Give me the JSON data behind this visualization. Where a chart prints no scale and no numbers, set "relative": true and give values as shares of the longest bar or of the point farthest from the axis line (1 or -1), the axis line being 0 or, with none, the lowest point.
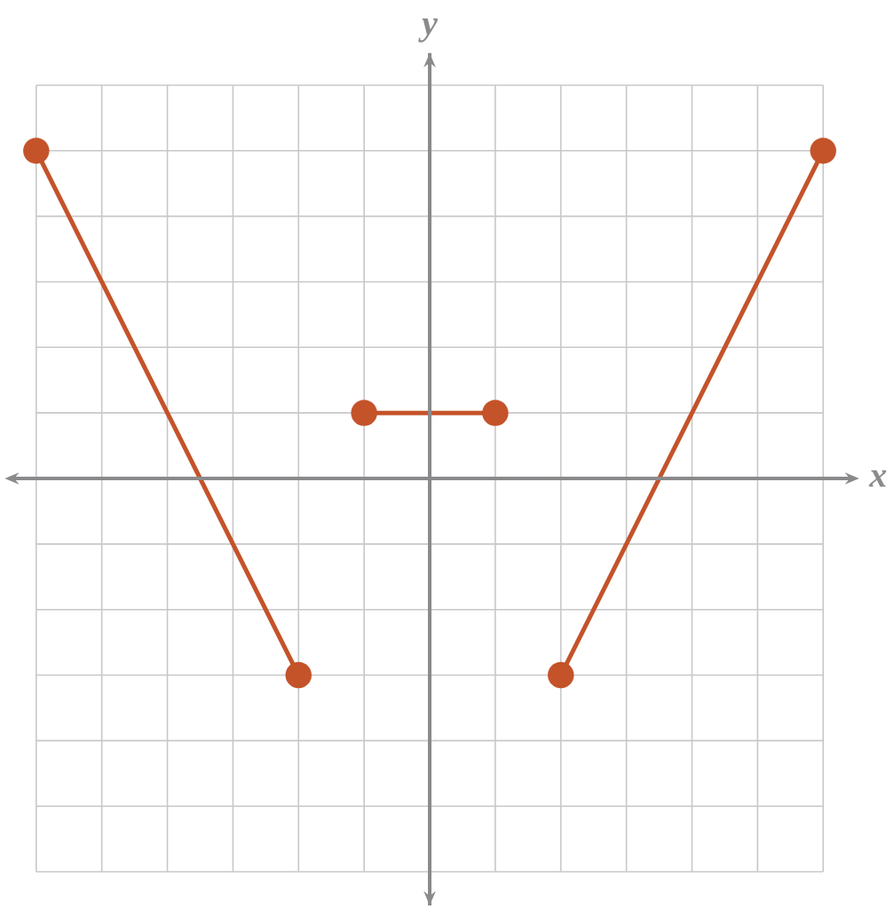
{
  "chart_data": {
    "type": "line",
    "xlabel": "x",
    "ylabel": "y",
    "relative": true,
    "grid": true,
    "marker": "circle",
    "categories": [
      null,
      null,
      null,
      null,
      null,
      null,
      null,
      null,
      null,
      null,
      null,
      null,
      null
    ],
    "series": [
      {
        "color": "#c4532a",
        "values": [
          1,
          null,
          null,
          null,
          -0.6,
          null,
          null,
          null,
          null,
          null,
          null,
          null,
          null
        ]
      },
      {
        "color": "#c4532a",
        "values": [
          null,
          null,
          null,
          null,
          null,
          0.2,
          null,
          0.2,
          null,
          null,
          null,
          null,
          null
        ]
      },
      {
        "color": "#c4532a",
        "values": [
          null,
          null,
          null,
          null,
          null,
          null,
          null,
          null,
          -0.6,
          null,
          null,
          null,
          1
        ]
      }
    ]
  }
}
